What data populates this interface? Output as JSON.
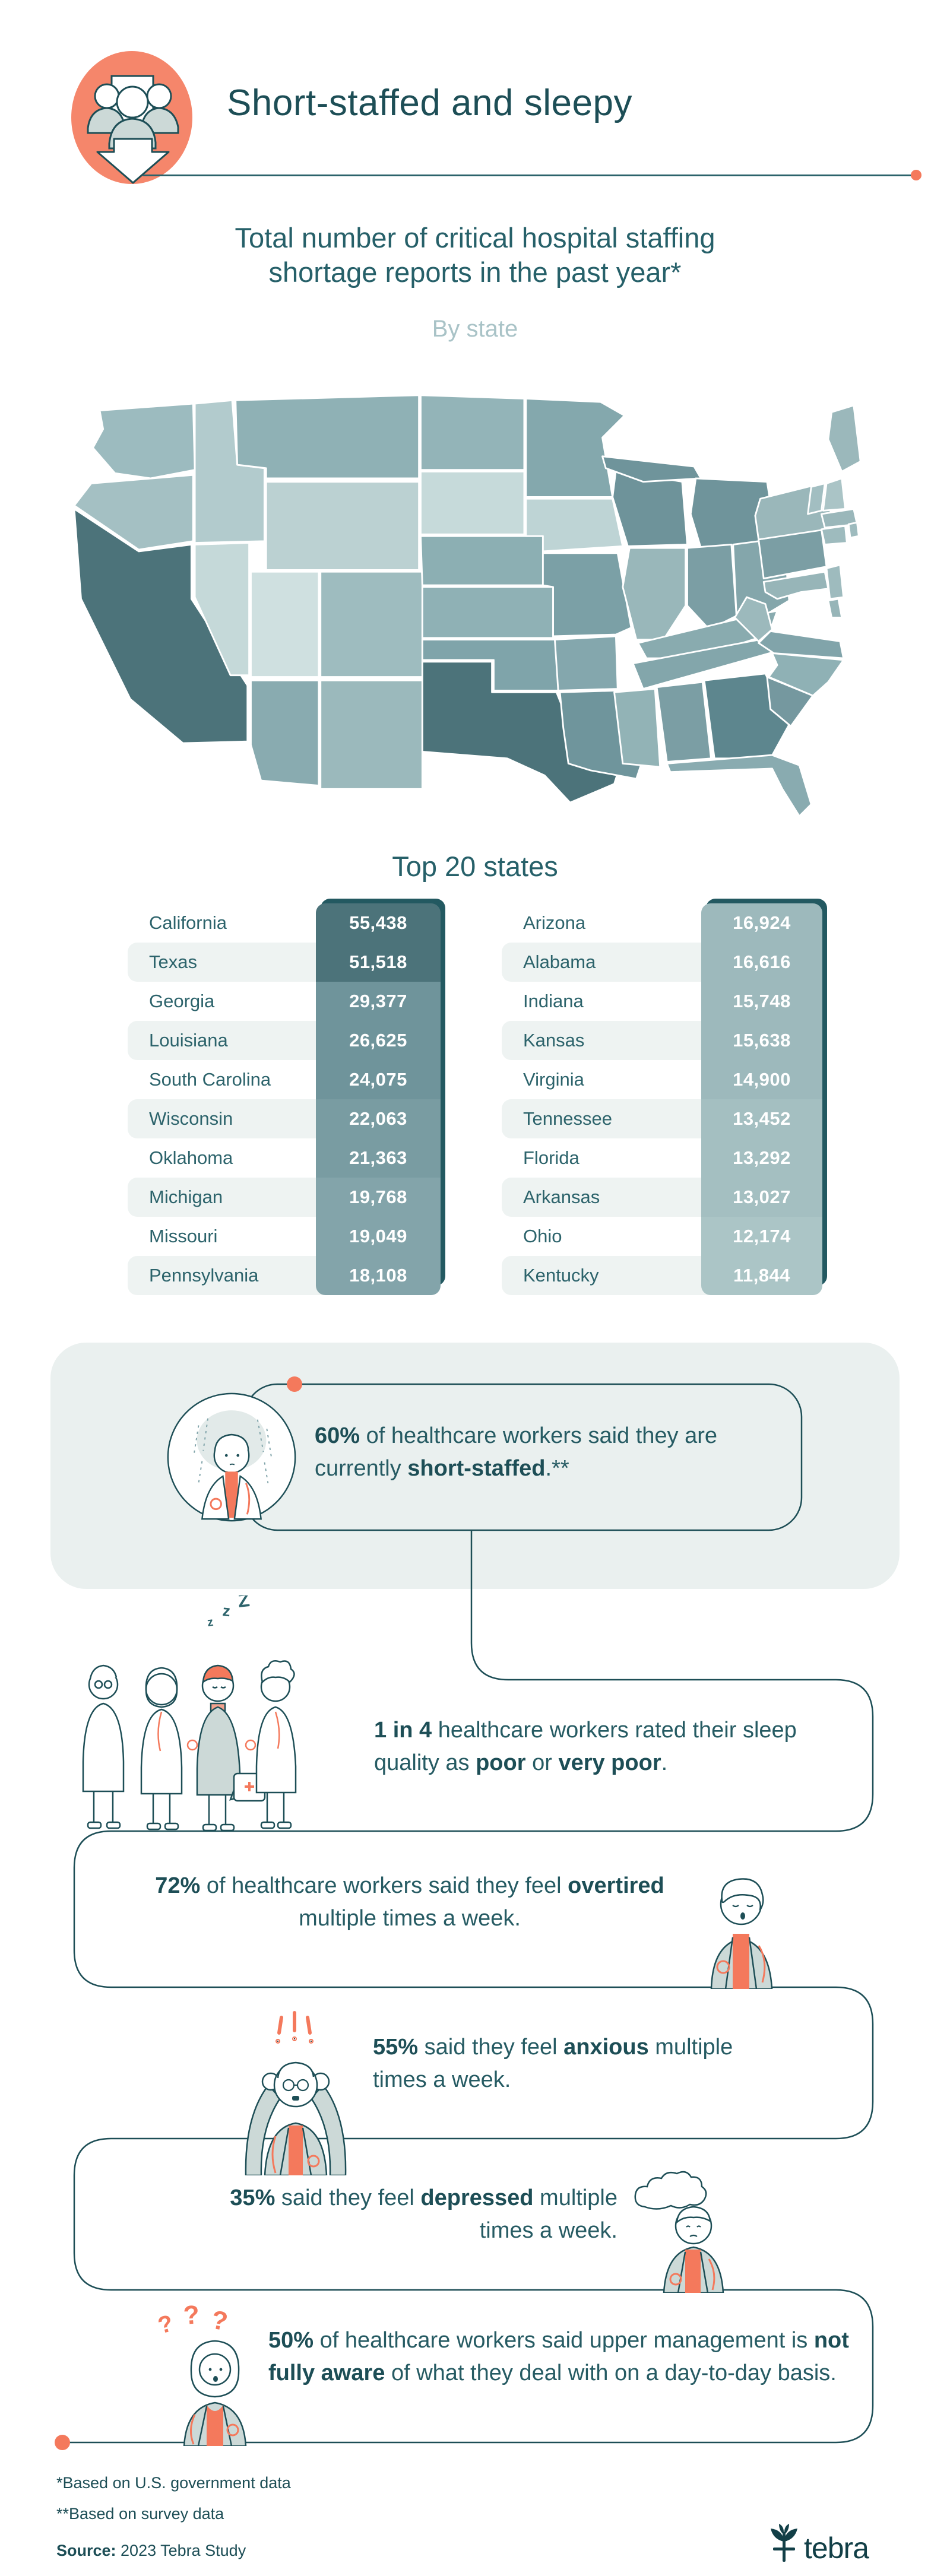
{
  "header": {
    "title": "Short-staffed and sleepy",
    "icon": "staff-shortage-arrow-icon"
  },
  "intro": {
    "line1": "Total number of critical hospital staffing",
    "line2": "shortage reports in the past year*",
    "byline": "By state"
  },
  "colors": {
    "accent": "#f4795c",
    "accent_light": "#f5866b",
    "ink": "#1d4e56",
    "teal_text": "#265b63",
    "muted": "#a9c3c7",
    "panel": "#eaf0ef",
    "stripe": "#eef3f2"
  },
  "map": {
    "fills": {
      "WA": "#9cbbbf",
      "OR": "#a4c0c3",
      "CA": "#4c737a",
      "NV": "#c5d9d9",
      "ID": "#b2cbcd",
      "MT": "#8fb1b5",
      "WY": "#bbd1d2",
      "UT": "#cfe0e0",
      "CO": "#9ebcbf",
      "AZ": "#89abb0",
      "NM": "#9bb9bc",
      "ND": "#93b4b8",
      "SD": "#c6dada",
      "NE": "#8cafb3",
      "KS": "#8fb1b5",
      "OK": "#7fa4aa",
      "TX": "#4c737a",
      "MN": "#84a8ad",
      "IA": "#bed4d5",
      "MO": "#7ba0a6",
      "AR": "#84a7ad",
      "LA": "#6f959c",
      "WI": "#6e939a",
      "IL": "#99b7ba",
      "MI": "#6f949b",
      "MIU": "#6f949b",
      "IN": "#7b9ea4",
      "OH": "#84a6ab",
      "KY": "#89abaf",
      "TN": "#83a6ab",
      "MS": "#92b3b6",
      "AL": "#7b9ea4",
      "GA": "#5d868e",
      "FL": "#89abb0",
      "SC": "#75989f",
      "NC": "#8fb1b5",
      "VA": "#81a4aa",
      "WV": "#9cb9bc",
      "PA": "#7b9ea4",
      "NY": "#9ab7ba",
      "ME": "#9bb8bb",
      "VT": "#a2bec1",
      "NH": "#aac4c6",
      "MA": "#9ab7ba",
      "CT": "#9ebbbe",
      "RI": "#9ebbbe",
      "NJ": "#9ebbbe",
      "DE": "#97b5b8",
      "MD": "#97b5b8"
    }
  },
  "top20": {
    "heading": "Top 20 states",
    "left": [
      {
        "state": "California",
        "value": 55438,
        "display": "55,438",
        "color": "#4c737a"
      },
      {
        "state": "Texas",
        "value": 51518,
        "display": "51,518",
        "color": "#4c737a"
      },
      {
        "state": "Georgia",
        "value": 29377,
        "display": "29,377",
        "color": "#6f949b"
      },
      {
        "state": "Louisiana",
        "value": 26625,
        "display": "26,625",
        "color": "#6f949b"
      },
      {
        "state": "South Carolina",
        "value": 24075,
        "display": "24,075",
        "color": "#6f949b"
      },
      {
        "state": "Wisconsin",
        "value": 22063,
        "display": "22,063",
        "color": "#799ca2"
      },
      {
        "state": "Oklahoma",
        "value": 21363,
        "display": "21,363",
        "color": "#799ca2"
      },
      {
        "state": "Michigan",
        "value": 19768,
        "display": "19,768",
        "color": "#83a4aa"
      },
      {
        "state": "Missouri",
        "value": 19049,
        "display": "19,049",
        "color": "#83a4aa"
      },
      {
        "state": "Pennsylvania",
        "value": 18108,
        "display": "18,108",
        "color": "#83a4aa"
      }
    ],
    "right": [
      {
        "state": "Arizona",
        "value": 16924,
        "display": "16,924",
        "color": "#9db9bc"
      },
      {
        "state": "Alabama",
        "value": 16616,
        "display": "16,616",
        "color": "#9db9bc"
      },
      {
        "state": "Indiana",
        "value": 15748,
        "display": "15,748",
        "color": "#9db9bc"
      },
      {
        "state": "Kansas",
        "value": 15638,
        "display": "15,638",
        "color": "#9db9bc"
      },
      {
        "state": "Virginia",
        "value": 14900,
        "display": "14,900",
        "color": "#9db9bc"
      },
      {
        "state": "Tennessee",
        "value": 13452,
        "display": "13,452",
        "color": "#a4bfc1"
      },
      {
        "state": "Florida",
        "value": 13292,
        "display": "13,292",
        "color": "#a4bfc1"
      },
      {
        "state": "Arkansas",
        "value": 13027,
        "display": "13,027",
        "color": "#a4bfc1"
      },
      {
        "state": "Ohio",
        "value": 12174,
        "display": "12,174",
        "color": "#abc5c6"
      },
      {
        "state": "Kentucky",
        "value": 11844,
        "display": "11,844",
        "color": "#abc5c6"
      }
    ]
  },
  "chart_data": {
    "type": "heatmap",
    "subtype": "us-choropleth",
    "title": "Total number of critical hospital staffing shortage reports in the past year*",
    "subtitle": "By state",
    "table_title": "Top 20 states",
    "categories": [
      "California",
      "Texas",
      "Georgia",
      "Louisiana",
      "South Carolina",
      "Wisconsin",
      "Oklahoma",
      "Michigan",
      "Missouri",
      "Pennsylvania",
      "Arizona",
      "Alabama",
      "Indiana",
      "Kansas",
      "Virginia",
      "Tennessee",
      "Florida",
      "Arkansas",
      "Ohio",
      "Kentucky"
    ],
    "values": [
      55438,
      51518,
      29377,
      26625,
      24075,
      22063,
      21363,
      19768,
      19049,
      18108,
      16924,
      16616,
      15748,
      15638,
      14900,
      13452,
      13292,
      13027,
      12174,
      11844
    ],
    "legend_position": "none",
    "color_scale": [
      "#cfe0e0",
      "#4c737a"
    ]
  },
  "callout": {
    "segments": [
      {
        "t": "60%",
        "b": 1
      },
      {
        "t": " of healthcare workers said they are currently ",
        "b": 0
      },
      {
        "t": "short-staffed",
        "b": 1
      },
      {
        "t": ".**",
        "b": 0
      }
    ]
  },
  "stats": [
    {
      "id": "sleep-quality",
      "segments": [
        {
          "t": "1 in 4",
          "b": 1
        },
        {
          "t": " healthcare workers rated their sleep quality as ",
          "b": 0
        },
        {
          "t": "poor",
          "b": 1
        },
        {
          "t": " or ",
          "b": 0
        },
        {
          "t": "very poor",
          "b": 1
        },
        {
          "t": ".",
          "b": 0
        }
      ]
    },
    {
      "id": "overtired",
      "segments": [
        {
          "t": "72%",
          "b": 1
        },
        {
          "t": " of healthcare workers said they feel ",
          "b": 0
        },
        {
          "t": "overtired",
          "b": 1
        },
        {
          "t": " multiple times a week.",
          "b": 0
        }
      ]
    },
    {
      "id": "anxious",
      "segments": [
        {
          "t": "55%",
          "b": 1
        },
        {
          "t": " said they feel ",
          "b": 0
        },
        {
          "t": "anxious",
          "b": 1
        },
        {
          "t": " multiple times a week.",
          "b": 0
        }
      ]
    },
    {
      "id": "depressed",
      "segments": [
        {
          "t": "35%",
          "b": 1
        },
        {
          "t": " said they feel ",
          "b": 0
        },
        {
          "t": "depressed",
          "b": 1
        },
        {
          "t": " multiple times a week.",
          "b": 0
        }
      ]
    },
    {
      "id": "management",
      "segments": [
        {
          "t": "50%",
          "b": 1
        },
        {
          "t": " of healthcare workers said upper management is ",
          "b": 0
        },
        {
          "t": "not fully aware",
          "b": 1
        },
        {
          "t": " of what they deal with on a day-to-day basis.",
          "b": 0
        }
      ]
    }
  ],
  "footnotes": {
    "note1": "*Based on U.S. government data",
    "note2": "**Based on survey data",
    "source": [
      {
        "t": "Source:",
        "b": 1
      },
      {
        "t": " 2023 Tebra Study",
        "b": 0
      }
    ]
  },
  "brand": {
    "name": "tebra"
  }
}
